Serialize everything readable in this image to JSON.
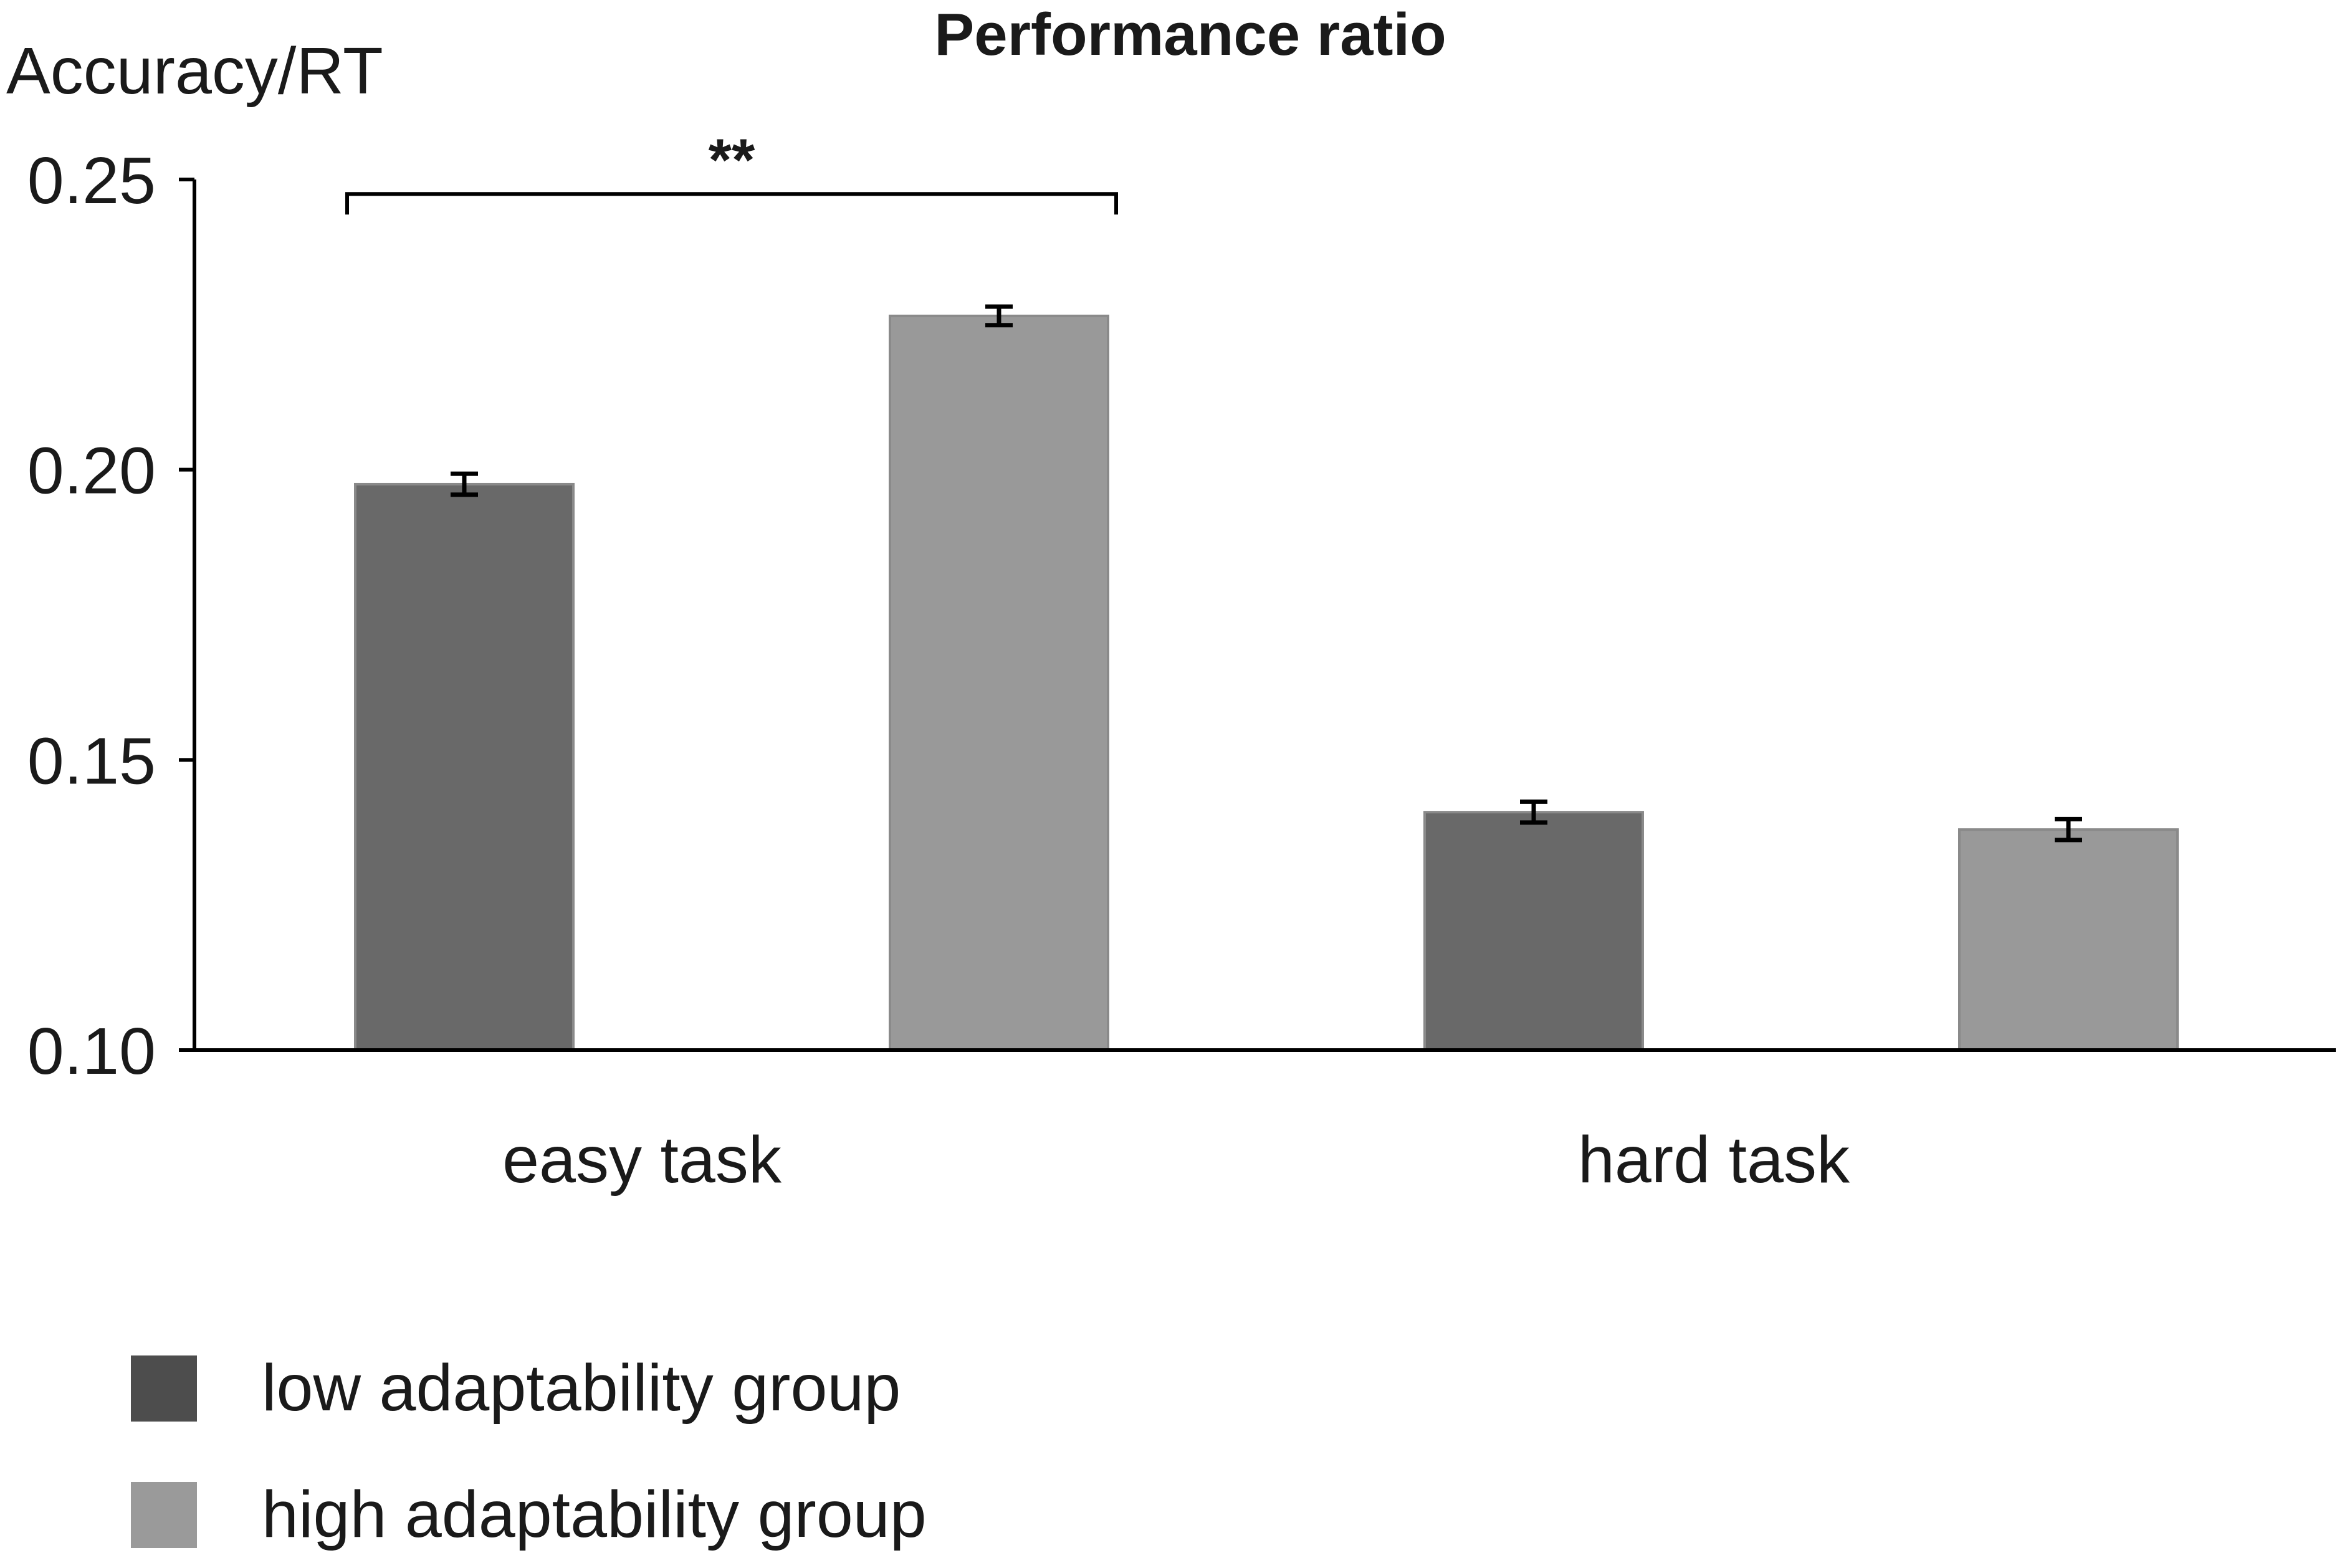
{
  "chart_data": {
    "type": "bar",
    "title": "Performance ratio",
    "ylabel": "Accuracy/RT",
    "xlabel": "",
    "ylim": [
      0.1,
      0.25
    ],
    "yticks": [
      "0.10",
      "0.15",
      "0.20",
      "0.25"
    ],
    "ytick_values": [
      0.1,
      0.15,
      0.2,
      0.25
    ],
    "categories": [
      "easy task",
      "hard task"
    ],
    "series": [
      {
        "name": "low adaptability group",
        "color": "#696969",
        "legend_color": "#4d4d4d",
        "values": [
          0.1975,
          0.141
        ],
        "errors": [
          0.0018,
          0.0018
        ]
      },
      {
        "name": "high adaptability group",
        "color": "#999999",
        "legend_color": "#9a9a9a",
        "values": [
          0.2265,
          0.138
        ],
        "errors": [
          0.0016,
          0.0018
        ]
      }
    ],
    "significance": [
      {
        "category": "easy task",
        "from_series": 0,
        "to_series": 1,
        "label": "**",
        "level": 0.2475
      }
    ],
    "grid": false,
    "legend_position": "bottom-left"
  }
}
